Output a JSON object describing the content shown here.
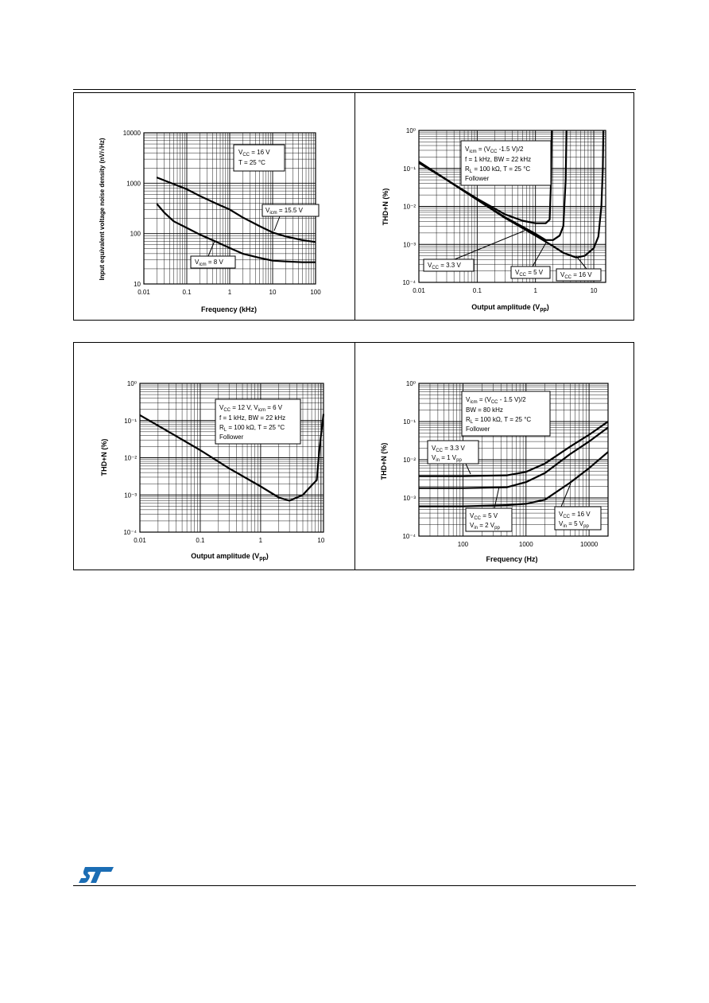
{
  "logo": {
    "text": "ST",
    "color": "#1b6db4"
  },
  "charts": [
    {
      "type": "line",
      "ylabel": "Input equivalent voltage noise density (nV/√Hz)",
      "xlabel": "Frequency (kHz)",
      "xlog": true,
      "ylog": true,
      "xlim": [
        0.01,
        100
      ],
      "ylim": [
        10,
        10000
      ],
      "xticks": [
        "0.01",
        "0.1",
        "1",
        "10",
        "100"
      ],
      "yticks": [
        "10",
        "100",
        "1000",
        "10000"
      ],
      "note": [
        "VCC = 16 V",
        "T = 25 °C"
      ],
      "series": [
        {
          "label": "Vicm = 15.5 V",
          "points": [
            [
              0.02,
              1300
            ],
            [
              0.05,
              960
            ],
            [
              0.1,
              760
            ],
            [
              0.2,
              560
            ],
            [
              0.5,
              390
            ],
            [
              1,
              300
            ],
            [
              2,
              210
            ],
            [
              5,
              140
            ],
            [
              10,
              105
            ],
            [
              20,
              88
            ],
            [
              50,
              74
            ],
            [
              100,
              68
            ]
          ]
        },
        {
          "label": "Vicm = 8 V",
          "points": [
            [
              0.02,
              390
            ],
            [
              0.03,
              260
            ],
            [
              0.05,
              175
            ],
            [
              0.1,
              130
            ],
            [
              0.2,
              96
            ],
            [
              0.5,
              68
            ],
            [
              1,
              52
            ],
            [
              2,
              40
            ],
            [
              5,
              33
            ],
            [
              10,
              29
            ],
            [
              20,
              28
            ],
            [
              50,
              27
            ],
            [
              100,
              27
            ]
          ]
        }
      ]
    },
    {
      "type": "line",
      "ylabel": "THD+N (%)",
      "xlabel": "Output amplitude (Vpp)",
      "xlog": true,
      "ylog": true,
      "xlim": [
        0.01,
        16
      ],
      "ylim": [
        0.0001,
        1
      ],
      "xticks": [
        "0.01",
        "0.1",
        "1",
        "10"
      ],
      "yticks": [
        "10⁻⁴",
        "10⁻³",
        "10⁻²",
        "10⁻¹",
        "10⁰"
      ],
      "note": [
        "Vicm = (VCC -1.5 V)/2",
        "f = 1 kHz, BW = 22 kHz",
        "RL = 100 kΩ, T = 25 °C",
        "Follower"
      ],
      "series": [
        {
          "label": "VCC = 3.3 V",
          "points": [
            [
              0.01,
              0.15
            ],
            [
              0.03,
              0.05
            ],
            [
              0.1,
              0.016
            ],
            [
              0.3,
              0.0062
            ],
            [
              0.6,
              0.0042
            ],
            [
              1,
              0.0036
            ],
            [
              1.5,
              0.0036
            ],
            [
              1.75,
              0.0045
            ],
            [
              1.85,
              0.05
            ],
            [
              1.9,
              1
            ]
          ]
        },
        {
          "label": "VCC = 5 V",
          "points": [
            [
              0.01,
              0.15
            ],
            [
              0.03,
              0.05
            ],
            [
              0.1,
              0.015
            ],
            [
              0.3,
              0.0052
            ],
            [
              1,
              0.0019
            ],
            [
              1.5,
              0.0013
            ],
            [
              2,
              0.0013
            ],
            [
              2.6,
              0.0017
            ],
            [
              3,
              0.003
            ],
            [
              3.3,
              0.05
            ],
            [
              3.4,
              1
            ]
          ]
        },
        {
          "label": "VCC = 16 V",
          "points": [
            [
              0.01,
              0.14
            ],
            [
              0.03,
              0.05
            ],
            [
              0.1,
              0.015
            ],
            [
              0.3,
              0.005
            ],
            [
              1,
              0.0017
            ],
            [
              2,
              0.0009
            ],
            [
              3,
              0.0006
            ],
            [
              5,
              0.00045
            ],
            [
              7,
              0.0005
            ],
            [
              10,
              0.0008
            ],
            [
              12,
              0.0016
            ],
            [
              13.5,
              0.01
            ],
            [
              14.3,
              0.1
            ],
            [
              14.6,
              1
            ]
          ]
        }
      ]
    },
    {
      "type": "line",
      "ylabel": "THD+N (%)",
      "xlabel": "Output amplitude (Vpp)",
      "xlog": true,
      "ylog": true,
      "xlim": [
        0.01,
        11
      ],
      "ylim": [
        0.0001,
        1
      ],
      "xticks": [
        "0.01",
        "0.1",
        "1",
        "10"
      ],
      "yticks": [
        "10⁻⁴",
        "10⁻³",
        "10⁻²",
        "10⁻¹",
        "10⁰"
      ],
      "note": [
        "VCC = 12 V, Vicm = 6 V",
        "f = 1 kHz, BW = 22 kHz",
        "RL = 100 kΩ, T = 25 °C",
        "Follower"
      ],
      "series": [
        {
          "label": "",
          "points": [
            [
              0.01,
              0.14
            ],
            [
              0.03,
              0.05
            ],
            [
              0.1,
              0.016
            ],
            [
              0.3,
              0.0052
            ],
            [
              1,
              0.0017
            ],
            [
              2,
              0.00085
            ],
            [
              3,
              0.0007
            ],
            [
              5,
              0.001
            ],
            [
              7,
              0.0018
            ],
            [
              8.5,
              0.0025
            ],
            [
              9.5,
              0.02
            ],
            [
              10.5,
              0.08
            ],
            [
              11,
              0.15
            ]
          ]
        }
      ]
    },
    {
      "type": "line",
      "ylabel": "THD+N (%)",
      "xlabel": "Frequency (Hz)",
      "xlog": true,
      "ylog": true,
      "xlim": [
        20,
        20000
      ],
      "ylim": [
        0.0001,
        1
      ],
      "xticks": [
        "100",
        "1000",
        "10000"
      ],
      "yticks": [
        "10⁻⁴",
        "10⁻³",
        "10⁻²",
        "10⁻¹",
        "10⁰"
      ],
      "note": [
        "Vicm = (VCC - 1.5 V)/2",
        "BW = 80 kHz",
        "RL = 100 kΩ, T = 25 °C",
        "Follower"
      ],
      "series": [
        {
          "label": "VCC = 3.3 V, Vin = 1 Vpp",
          "points": [
            [
              20,
              0.0037
            ],
            [
              100,
              0.0037
            ],
            [
              500,
              0.0039
            ],
            [
              1000,
              0.0048
            ],
            [
              2000,
              0.008
            ],
            [
              5000,
              0.022
            ],
            [
              10000,
              0.045
            ],
            [
              20000,
              0.1
            ]
          ]
        },
        {
          "label": "VCC = 5 V, Vin = 2 Vpp",
          "points": [
            [
              20,
              0.0018
            ],
            [
              100,
              0.0018
            ],
            [
              500,
              0.0019
            ],
            [
              1000,
              0.0026
            ],
            [
              2000,
              0.0045
            ],
            [
              5000,
              0.014
            ],
            [
              10000,
              0.03
            ],
            [
              20000,
              0.07
            ]
          ]
        },
        {
          "label": "VCC = 16 V, Vin = 5 Vpp",
          "points": [
            [
              20,
              0.0006
            ],
            [
              100,
              0.0006
            ],
            [
              500,
              0.00065
            ],
            [
              1000,
              0.0007
            ],
            [
              2000,
              0.0009
            ],
            [
              5000,
              0.0025
            ],
            [
              10000,
              0.006
            ],
            [
              20000,
              0.016
            ]
          ]
        }
      ]
    }
  ],
  "labels": {
    "c1": {
      "note_l1_a": "V",
      "note_l1_sub": "CC",
      "note_l1_b": " = 16 V",
      "note_l2": "T = 25 °C",
      "s1_a": "V",
      "s1_sub": "icm",
      "s1_b": " = 15.5 V",
      "s2_a": "V",
      "s2_sub": "icm",
      "s2_b": " = 8 V"
    },
    "c2": {
      "n1_a": "V",
      "n1_sub": "icm",
      "n1_b": " = (V",
      "n1_sub2": "CC",
      "n1_c": " -1.5 V)/2",
      "n2": "f = 1 kHz, BW = 22 kHz",
      "n3_a": "R",
      "n3_sub": "L",
      "n3_b": " = 100 kΩ, T = 25 °C",
      "n4": "Follower",
      "s1_a": "V",
      "s1_sub": "CC",
      "s1_b": " = 3.3 V",
      "s2_a": "V",
      "s2_sub": "CC",
      "s2_b": " = 5 V",
      "s3_a": "V",
      "s3_sub": "CC",
      "s3_b": " = 16 V",
      "xl_a": "Output amplitude (V",
      "xl_sub": "pp",
      "xl_b": ")"
    },
    "c3": {
      "n1_a": "V",
      "n1_sub": "CC",
      "n1_b": " = 12 V, V",
      "n1_sub2": "icm",
      "n1_c": " = 6 V",
      "n2": "f = 1 kHz, BW = 22 kHz",
      "n3_a": "R",
      "n3_sub": "L",
      "n3_b": " = 100 kΩ, T = 25 °C",
      "n4": "Follower",
      "xl_a": "Output amplitude (V",
      "xl_sub": "pp",
      "xl_b": ")"
    },
    "c4": {
      "n1_a": "V",
      "n1_sub": "icm",
      "n1_b": " = (V",
      "n1_sub2": "CC",
      "n1_c": " - 1.5 V)/2",
      "n2": "BW = 80 kHz",
      "n3_a": "R",
      "n3_sub": "L",
      "n3_b": " = 100 kΩ, T = 25 °C",
      "n4": "Follower",
      "s1l1_a": "V",
      "s1l1_sub": "CC",
      "s1l1_b": " = 3.3 V",
      "s1l2_a": "V",
      "s1l2_sub": "in",
      "s1l2_b": " = 1 V",
      "s1l2_sub2": "pp",
      "s2l1_a": "V",
      "s2l1_sub": "CC",
      "s2l1_b": " = 5 V",
      "s2l2_a": "V",
      "s2l2_sub": "in",
      "s2l2_b": " = 2 V",
      "s2l2_sub2": "pp",
      "s3l1_a": "V",
      "s3l1_sub": "CC",
      "s3l1_b": " = 16 V",
      "s3l2_a": "V",
      "s3l2_sub": "in",
      "s3l2_b": " = 5 V",
      "s3l2_sub2": "pp"
    }
  },
  "chart_data": [
    {
      "type": "line",
      "xlabel": "Frequency (kHz)",
      "ylabel": "Input equivalent voltage noise density (nV/√Hz)",
      "x_scale": "log",
      "y_scale": "log",
      "xlim": [
        0.01,
        100
      ],
      "ylim": [
        10,
        10000
      ],
      "series": [
        {
          "name": "Vicm = 15.5 V",
          "x": [
            0.02,
            0.05,
            0.1,
            0.2,
            0.5,
            1,
            2,
            5,
            10,
            20,
            50,
            100
          ],
          "y": [
            1300,
            960,
            760,
            560,
            390,
            300,
            210,
            140,
            105,
            88,
            74,
            68
          ]
        },
        {
          "name": "Vicm = 8 V",
          "x": [
            0.02,
            0.03,
            0.05,
            0.1,
            0.2,
            0.5,
            1,
            2,
            5,
            10,
            20,
            50,
            100
          ],
          "y": [
            390,
            260,
            175,
            130,
            96,
            68,
            52,
            40,
            33,
            29,
            28,
            27,
            27
          ]
        }
      ]
    },
    {
      "type": "line",
      "xlabel": "Output amplitude (Vpp)",
      "ylabel": "THD+N (%)",
      "x_scale": "log",
      "y_scale": "log",
      "xlim": [
        0.01,
        16
      ],
      "ylim": [
        0.0001,
        1
      ],
      "series": [
        {
          "name": "VCC = 3.3 V",
          "x": [
            0.01,
            0.03,
            0.1,
            0.3,
            0.6,
            1,
            1.5,
            1.75,
            1.85,
            1.9
          ],
          "y": [
            0.15,
            0.05,
            0.016,
            0.0062,
            0.0042,
            0.0036,
            0.0036,
            0.0045,
            0.05,
            1
          ]
        },
        {
          "name": "VCC = 5 V",
          "x": [
            0.01,
            0.03,
            0.1,
            0.3,
            1,
            1.5,
            2,
            2.6,
            3,
            3.3,
            3.4
          ],
          "y": [
            0.15,
            0.05,
            0.015,
            0.0052,
            0.0019,
            0.0013,
            0.0013,
            0.0017,
            0.003,
            0.05,
            1
          ]
        },
        {
          "name": "VCC = 16 V",
          "x": [
            0.01,
            0.03,
            0.1,
            0.3,
            1,
            2,
            3,
            5,
            7,
            10,
            12,
            13.5,
            14.3,
            14.6
          ],
          "y": [
            0.14,
            0.05,
            0.015,
            0.005,
            0.0017,
            0.0009,
            0.0006,
            0.00045,
            0.0005,
            0.0008,
            0.0016,
            0.01,
            0.1,
            1
          ]
        }
      ]
    },
    {
      "type": "line",
      "xlabel": "Output amplitude (Vpp)",
      "ylabel": "THD+N (%)",
      "x_scale": "log",
      "y_scale": "log",
      "xlim": [
        0.01,
        11
      ],
      "ylim": [
        0.0001,
        1
      ],
      "series": [
        {
          "x": [
            0.01,
            0.03,
            0.1,
            0.3,
            1,
            2,
            3,
            5,
            7,
            8.5,
            9.5,
            10.5,
            11
          ],
          "y": [
            0.14,
            0.05,
            0.016,
            0.0052,
            0.0017,
            0.00085,
            0.0007,
            0.001,
            0.0018,
            0.0025,
            0.02,
            0.08,
            0.15
          ]
        }
      ]
    },
    {
      "type": "line",
      "xlabel": "Frequency (Hz)",
      "ylabel": "THD+N (%)",
      "x_scale": "log",
      "y_scale": "log",
      "xlim": [
        20,
        20000
      ],
      "ylim": [
        0.0001,
        1
      ],
      "series": [
        {
          "name": "VCC = 3.3 V, Vin = 1 Vpp",
          "x": [
            20,
            100,
            500,
            1000,
            2000,
            5000,
            10000,
            20000
          ],
          "y": [
            0.0037,
            0.0037,
            0.0039,
            0.0048,
            0.008,
            0.022,
            0.045,
            0.1
          ]
        },
        {
          "name": "VCC = 5 V, Vin = 2 Vpp",
          "x": [
            20,
            100,
            500,
            1000,
            2000,
            5000,
            10000,
            20000
          ],
          "y": [
            0.0018,
            0.0018,
            0.0019,
            0.0026,
            0.0045,
            0.014,
            0.03,
            0.07
          ]
        },
        {
          "name": "VCC = 16 V, Vin = 5 Vpp",
          "x": [
            20,
            100,
            500,
            1000,
            2000,
            5000,
            10000,
            20000
          ],
          "y": [
            0.0006,
            0.0006,
            0.00065,
            0.0007,
            0.0009,
            0.0025,
            0.006,
            0.016
          ]
        }
      ]
    }
  ]
}
